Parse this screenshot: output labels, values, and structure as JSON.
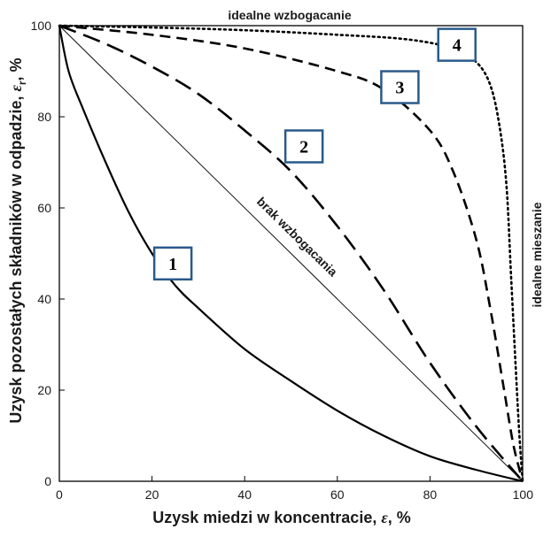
{
  "chart_data": {
    "type": "line",
    "xlabel": {
      "main": "Uzysk miedzi w koncentracie, ",
      "sym": "ε",
      "unit": ", %"
    },
    "ylabel": {
      "main": "Uzysk pozostałych składników w odpadzie, ",
      "sym": "ε",
      "sub": "r",
      "unit": ", %"
    },
    "xlim": [
      0,
      100
    ],
    "ylim": [
      0,
      100
    ],
    "xticks": [
      "0",
      "20",
      "40",
      "60",
      "80",
      "100"
    ],
    "yticks": [
      "0",
      "20",
      "40",
      "60",
      "80",
      "100"
    ],
    "annotations": {
      "top": "idealne wzbogacanie",
      "right": "idealne mieszanie",
      "diagonal": "brak wzbogacania"
    },
    "series": [
      {
        "name": "1",
        "style": "solid",
        "color": "#000000",
        "x": [
          0,
          2,
          5,
          10,
          15,
          20,
          25,
          30,
          40,
          50,
          60,
          70,
          80,
          90,
          100
        ],
        "y": [
          100,
          90,
          82,
          70,
          59,
          50,
          43,
          38,
          29,
          22,
          15.5,
          10,
          5.5,
          2.5,
          0
        ]
      },
      {
        "name": "2",
        "style": "longdash",
        "color": "#000000",
        "x": [
          0,
          10,
          20,
          30,
          40,
          50,
          60,
          70,
          80,
          90,
          100
        ],
        "y": [
          100,
          96,
          91,
          85,
          77,
          68,
          56,
          42,
          26,
          12,
          0
        ]
      },
      {
        "name": "3",
        "style": "dash",
        "color": "#000000",
        "x": [
          0,
          20,
          40,
          60,
          70,
          80,
          85,
          90,
          93,
          96,
          98,
          100
        ],
        "y": [
          100,
          98,
          95,
          90,
          86,
          77,
          68,
          53,
          38,
          20,
          8,
          0
        ]
      },
      {
        "name": "4",
        "style": "dot",
        "color": "#000000",
        "x": [
          0,
          20,
          40,
          60,
          75,
          85,
          90,
          93,
          95,
          96.5,
          97.5,
          98.5,
          99.3,
          100
        ],
        "y": [
          100,
          99.6,
          99,
          98,
          97,
          95,
          92,
          87,
          78,
          65,
          45,
          25,
          10,
          0
        ]
      },
      {
        "name": "brak wzbogacania",
        "style": "thin",
        "color": "#000000",
        "x": [
          0,
          100
        ],
        "y": [
          100,
          0
        ]
      }
    ],
    "labels": [
      {
        "text": "1",
        "x": 24.5,
        "y": 47.8
      },
      {
        "text": "2",
        "x": 52.8,
        "y": 73.5
      },
      {
        "text": "3",
        "x": 73.5,
        "y": 86.5
      },
      {
        "text": "4",
        "x": 85.8,
        "y": 95.8
      }
    ],
    "colors": {
      "box_stroke": "#2a5a8a",
      "box_fill": "#ffffff",
      "axis": "#000000"
    }
  }
}
